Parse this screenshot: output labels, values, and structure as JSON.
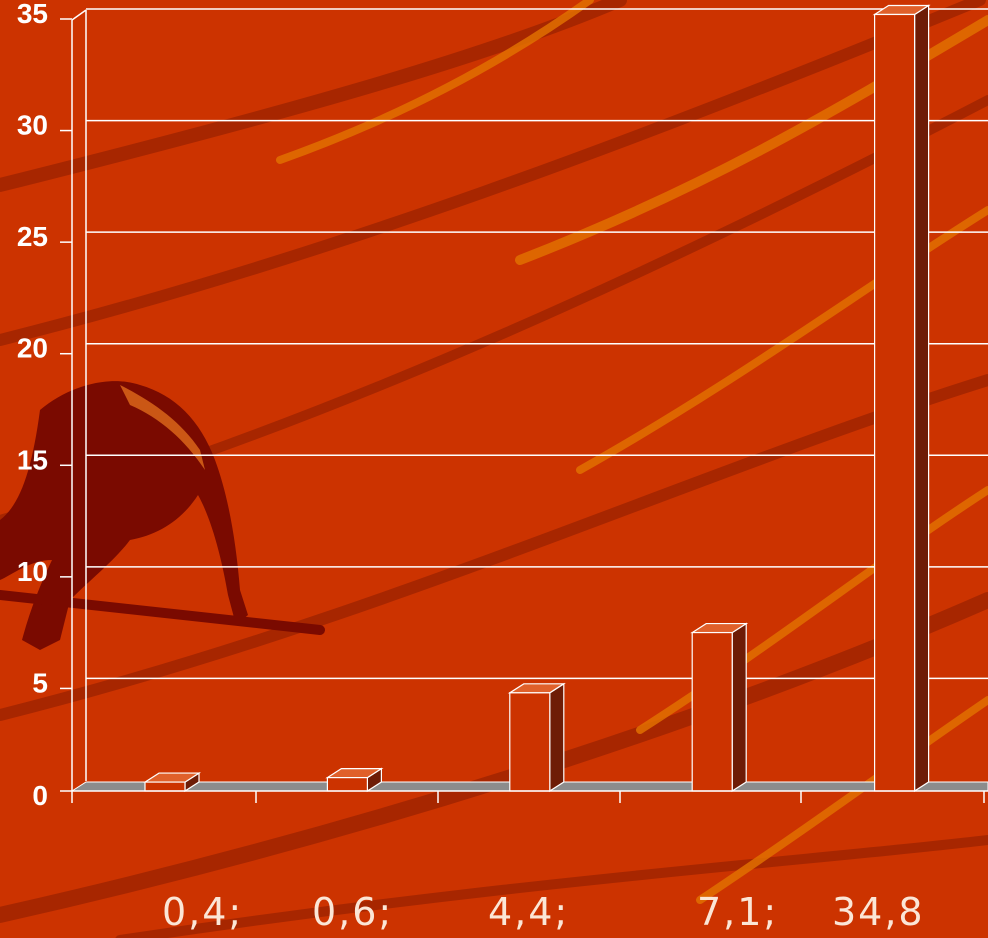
{
  "colors": {
    "background": "#cc3300",
    "grid_line": "#ffffff",
    "bar_front": "#cc3300",
    "bar_side": "#6e1c06",
    "bar_top": "#e0602a",
    "floor": "#8c8c8c",
    "swoosh_dark": "#a02400",
    "swoosh_light": "#e07000",
    "silhouette": "#7a0a00",
    "label_text": "#fbe6d6"
  },
  "chart_data": {
    "type": "bar",
    "categories": [
      "",
      "",
      "",
      "",
      ""
    ],
    "values": [
      0.4,
      0.6,
      4.4,
      7.1,
      34.8
    ],
    "data_labels": [
      "0,4;",
      "0,6;",
      "4,4;",
      "7,1;",
      "34,8"
    ],
    "y_ticks": [
      "0",
      "5",
      "10",
      "15",
      "20",
      "25",
      "30",
      "35"
    ],
    "ylim": [
      0,
      35
    ],
    "grid": true,
    "style": "3d-column"
  }
}
